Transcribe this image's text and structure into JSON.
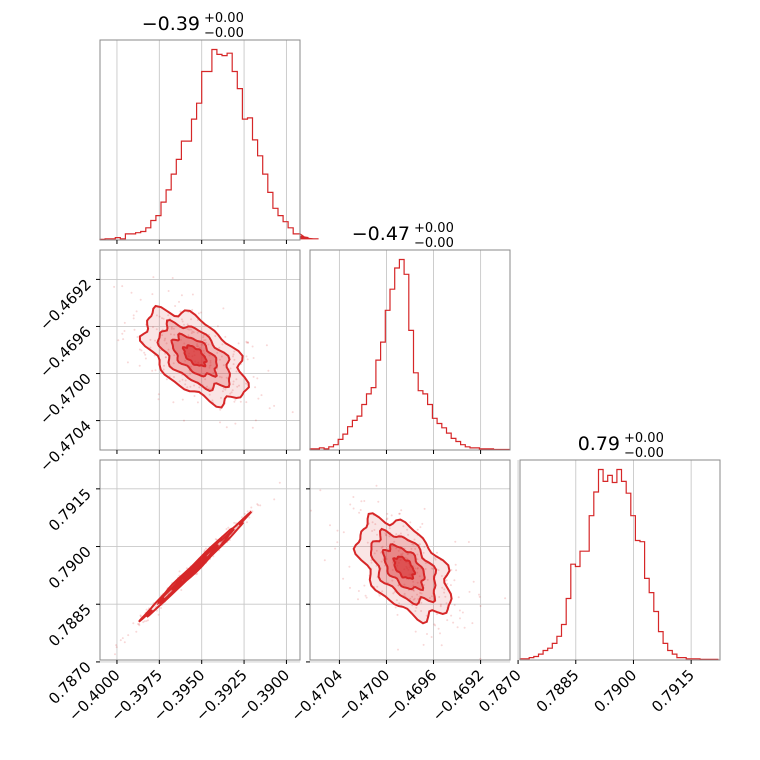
{
  "figure": {
    "kind": "corner-plot",
    "color": "#d62728",
    "grid": true
  },
  "chart_data": [
    {
      "type": "histogram",
      "panel": "hist-0",
      "title_value": "−0.39",
      "title_upper": "+0.00",
      "title_lower": "−0.00",
      "xlim": [
        -0.401,
        -0.3892
      ],
      "x_ticks": [
        -0.4,
        -0.3975,
        -0.395,
        -0.3925,
        -0.39
      ],
      "x_tick_labels": [
        "−0.4000",
        "−0.3975",
        "−0.3950",
        "−0.3925",
        "−0.3900"
      ],
      "bin_edges_start": -0.401,
      "bin_width": 0.0003,
      "counts": [
        0.5,
        1,
        1,
        2,
        1,
        5,
        5,
        6,
        7,
        10,
        16,
        20,
        31,
        41,
        54,
        66,
        81,
        81,
        99,
        112,
        138,
        138,
        156,
        152,
        151,
        153,
        138,
        124,
        99,
        100,
        82,
        69,
        54,
        39,
        26,
        20,
        15,
        10,
        5,
        5,
        3,
        2,
        1,
        1
      ]
    },
    {
      "type": "histogram",
      "panel": "hist-1",
      "title_value": "−0.47",
      "title_upper": "+0.00",
      "title_lower": "−0.00",
      "xlim": [
        -0.47065,
        -0.46895
      ],
      "x_ticks": [
        -0.4704,
        -0.47,
        -0.4696,
        -0.4692
      ],
      "x_tick_labels": [
        "−0.4704",
        "−0.4700",
        "−0.4696",
        "−0.4692"
      ],
      "bin_edges_start": -0.47065,
      "bin_width": 4e-05,
      "counts": [
        1,
        1,
        2,
        1,
        3,
        5,
        10,
        15,
        22,
        28,
        32,
        43,
        53,
        59,
        85,
        102,
        132,
        152,
        172,
        180,
        166,
        113,
        73,
        56,
        53,
        43,
        30,
        25,
        21,
        16,
        11,
        8,
        5,
        3,
        2,
        2,
        1,
        1,
        1,
        0.5,
        0.5,
        0.5,
        0.5
      ]
    },
    {
      "type": "histogram",
      "panel": "hist-2",
      "title_value": "0.79",
      "title_upper": "+0.00",
      "title_lower": "−0.00",
      "xlim": [
        0.78705,
        0.79225
      ],
      "x_ticks": [
        0.787,
        0.7885,
        0.79,
        0.7915
      ],
      "x_tick_labels": [
        "0.7870",
        "0.7885",
        "0.7900",
        "0.7915"
      ],
      "bin_edges_start": 0.78705,
      "bin_width": 0.00012,
      "counts": [
        1,
        1,
        2,
        3,
        5,
        8,
        10,
        14,
        20,
        30,
        52,
        81,
        79,
        92,
        92,
        122,
        142,
        161,
        151,
        156,
        150,
        161,
        151,
        141,
        122,
        101,
        100,
        69,
        57,
        41,
        24,
        14,
        8,
        5,
        2,
        2,
        1,
        1,
        1,
        0.5,
        0.5,
        0.5,
        0.5
      ]
    },
    {
      "type": "contour",
      "panel": "joint-1-0",
      "xlim": [
        -0.401,
        -0.3892
      ],
      "ylim": [
        -0.47065,
        -0.46895
      ],
      "y_ticks": [
        -0.4692,
        -0.4696,
        -0.47,
        -0.4704
      ],
      "y_tick_labels": [
        "−0.4692",
        "−0.4696",
        "−0.4700",
        "−0.4704"
      ],
      "center": [
        -0.3954,
        -0.46985
      ],
      "sd": [
        0.0013,
        0.00017
      ],
      "corr": -0.55
    },
    {
      "type": "contour",
      "panel": "joint-2-0",
      "xlim": [
        -0.401,
        -0.3892
      ],
      "ylim": [
        0.78705,
        0.79225
      ],
      "y_ticks": [
        0.7915,
        0.79,
        0.7885,
        0.787
      ],
      "y_tick_labels": [
        "0.7915",
        "0.7900",
        "0.7885",
        "0.7870"
      ],
      "center": [
        -0.3954,
        0.78945
      ],
      "sd": [
        0.0013,
        0.00056
      ],
      "corr": 0.995
    },
    {
      "type": "contour",
      "panel": "joint-2-1",
      "xlim": [
        -0.47065,
        -0.46895
      ],
      "ylim": [
        0.78705,
        0.79225
      ],
      "center": [
        -0.46985,
        0.78945
      ],
      "sd": [
        0.00017,
        0.00056
      ],
      "corr": -0.5
    }
  ]
}
